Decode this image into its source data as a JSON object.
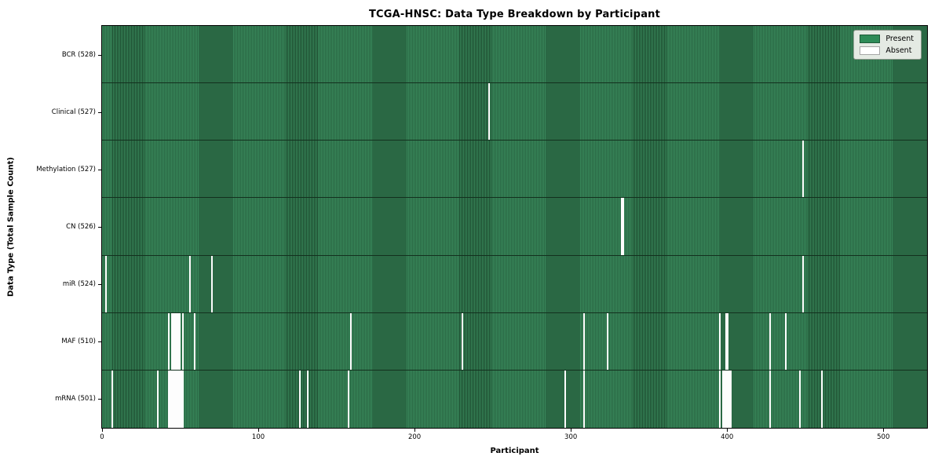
{
  "chart_data": {
    "type": "heatmap",
    "title": "TCGA-HNSC: Data Type Breakdown by Participant",
    "xlabel": "Participant",
    "ylabel": "Data Type (Total Sample Count)",
    "n_participants": 528,
    "x_ticks": [
      0,
      100,
      200,
      300,
      400,
      500
    ],
    "grid": false,
    "legend_position": "upper right",
    "legend": [
      {
        "label": "Present",
        "color": "#2e8b57"
      },
      {
        "label": "Absent",
        "color": "#ffffff"
      }
    ],
    "rows": [
      {
        "label": "BCR (528)",
        "data_type": "BCR",
        "total": 528,
        "absent_count": 0,
        "absent_participants": []
      },
      {
        "label": "Clinical (527)",
        "data_type": "Clinical",
        "total": 527,
        "absent_count": 1,
        "absent_participants": [
          247
        ]
      },
      {
        "label": "Methylation (527)",
        "data_type": "Methylation",
        "total": 527,
        "absent_count": 1,
        "absent_participants": [
          448
        ]
      },
      {
        "label": "CN (526)",
        "data_type": "CN",
        "total": 526,
        "absent_count": 2,
        "absent_participants": [
          332,
          333
        ]
      },
      {
        "label": "miR (524)",
        "data_type": "miR",
        "total": 524,
        "absent_count": 4,
        "absent_participants": [
          2,
          56,
          70,
          448
        ]
      },
      {
        "label": "MAF (510)",
        "data_type": "MAF",
        "total": 510,
        "absent_count": 18,
        "absent_participants": [
          42,
          44,
          45,
          46,
          47,
          48,
          49,
          51,
          59,
          159,
          230,
          308,
          323,
          395,
          399,
          400,
          427,
          437
        ]
      },
      {
        "label": "mRNA (501)",
        "data_type": "mRNA",
        "total": 501,
        "absent_count": 27,
        "absent_participants": [
          6,
          35,
          42,
          43,
          44,
          45,
          46,
          47,
          48,
          49,
          50,
          51,
          126,
          131,
          157,
          296,
          308,
          395,
          397,
          398,
          399,
          400,
          401,
          402,
          427,
          446,
          460
        ]
      }
    ]
  }
}
